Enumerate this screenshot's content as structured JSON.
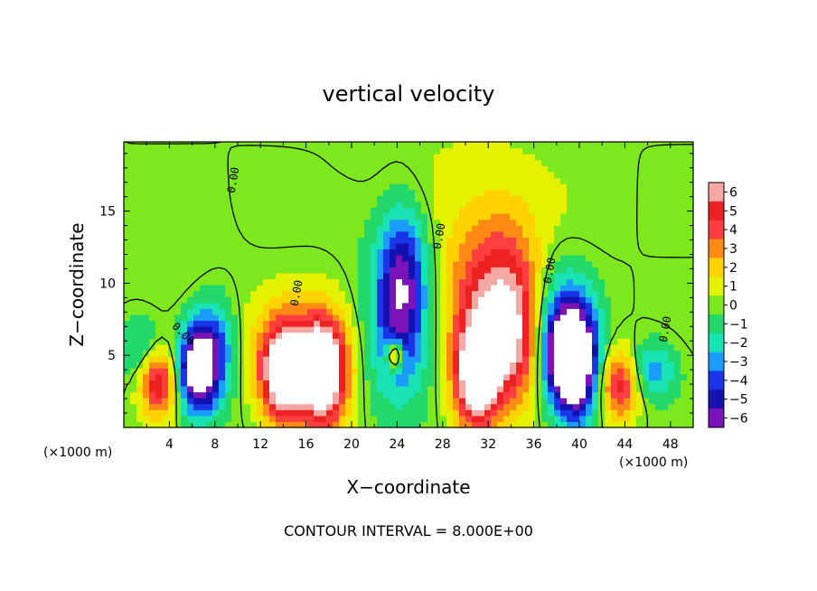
{
  "chart_data": {
    "type": "heatmap",
    "title": "vertical velocity",
    "xlabel": "X−coordinate",
    "ylabel": "Z−coordinate",
    "x_unit": "(×1000 m)",
    "x_unit_right": "(×1000 m)",
    "footer": "CONTOUR INTERVAL = 8.000E+00",
    "xlim": [
      0,
      50
    ],
    "ylim": [
      0,
      19.8
    ],
    "x_ticks": [
      4,
      8,
      12,
      16,
      20,
      24,
      28,
      32,
      36,
      40,
      44,
      48
    ],
    "y_ticks": [
      5,
      10,
      15
    ],
    "colorbar": {
      "labels": [
        "6",
        "5",
        "4",
        "3",
        "2",
        "1",
        "0",
        "−1",
        "−2",
        "−3",
        "−4",
        "−5",
        "−6"
      ],
      "values": [
        6,
        5,
        4,
        3,
        2,
        1,
        0,
        -1,
        -2,
        -3,
        -4,
        -5,
        -6
      ],
      "colors": [
        "#f6a9a4",
        "#ee2222",
        "#ff3f3f",
        "#ff8a14",
        "#ffd200",
        "#e4f200",
        "#7de81e",
        "#22d86a",
        "#19e3b5",
        "#1b9cff",
        "#1a34e8",
        "#1511b0",
        "#7a14b8"
      ]
    },
    "contour_labels": [
      "0.00",
      "0.00",
      "0.00",
      "0.00",
      "0.00",
      "0.00"
    ],
    "features": [
      {
        "x": 3.0,
        "z": 3.2,
        "value": 5.5,
        "sx": 1.1,
        "sz": 1.6
      },
      {
        "x": 6.5,
        "z": 4.0,
        "value": -8.0,
        "sx": 1.2,
        "sz": 2.2
      },
      {
        "x": 8.0,
        "z": 5.5,
        "value": -3.5,
        "sx": 1.3,
        "sz": 2.5
      },
      {
        "x": 14.0,
        "z": 3.5,
        "value": 8.0,
        "sx": 1.4,
        "sz": 2.4
      },
      {
        "x": 17.5,
        "z": 3.6,
        "value": 8.5,
        "sx": 1.4,
        "sz": 2.6
      },
      {
        "x": 15.8,
        "z": 5.5,
        "value": 3.0,
        "sx": 3.0,
        "sz": 2.5
      },
      {
        "x": 24.5,
        "z": 10.5,
        "value": -5.0,
        "sx": 1.5,
        "sz": 3.5
      },
      {
        "x": 24.0,
        "z": 6.0,
        "value": -3.0,
        "sx": 2.0,
        "sz": 4.0
      },
      {
        "x": 23.8,
        "z": 5.0,
        "value": 6.0,
        "sx": 0.5,
        "sz": 0.7
      },
      {
        "x": 33.0,
        "z": 9.5,
        "value": 5.5,
        "sx": 3.2,
        "sz": 4.0
      },
      {
        "x": 31.0,
        "z": 3.5,
        "value": 8.5,
        "sx": 1.4,
        "sz": 2.6
      },
      {
        "x": 34.5,
        "z": 5.5,
        "value": 4.0,
        "sx": 2.0,
        "sz": 3.0
      },
      {
        "x": 38.5,
        "z": 5.0,
        "value": -8.0,
        "sx": 1.6,
        "sz": 2.6
      },
      {
        "x": 40.0,
        "z": 4.5,
        "value": -6.0,
        "sx": 1.3,
        "sz": 3.0
      },
      {
        "x": 37.5,
        "z": 9.0,
        "value": -2.5,
        "sx": 1.8,
        "sz": 3.0
      },
      {
        "x": 43.5,
        "z": 3.0,
        "value": 5.0,
        "sx": 1.2,
        "sz": 1.7
      },
      {
        "x": 46.5,
        "z": 4.0,
        "value": -3.0,
        "sx": 1.4,
        "sz": 1.4
      },
      {
        "x": 1.5,
        "z": 5.5,
        "value": -2.0,
        "sx": 1.4,
        "sz": 1.5
      },
      {
        "x": 5.0,
        "z": 10.0,
        "value": 0.6,
        "sx": 3.0,
        "sz": 3.0
      },
      {
        "x": 29.0,
        "z": 17.0,
        "value": 0.6,
        "sx": 6.0,
        "sz": 3.0
      },
      {
        "x": 21.0,
        "z": 15.0,
        "value": -0.5,
        "sx": 2.5,
        "sz": 2.5
      }
    ]
  }
}
